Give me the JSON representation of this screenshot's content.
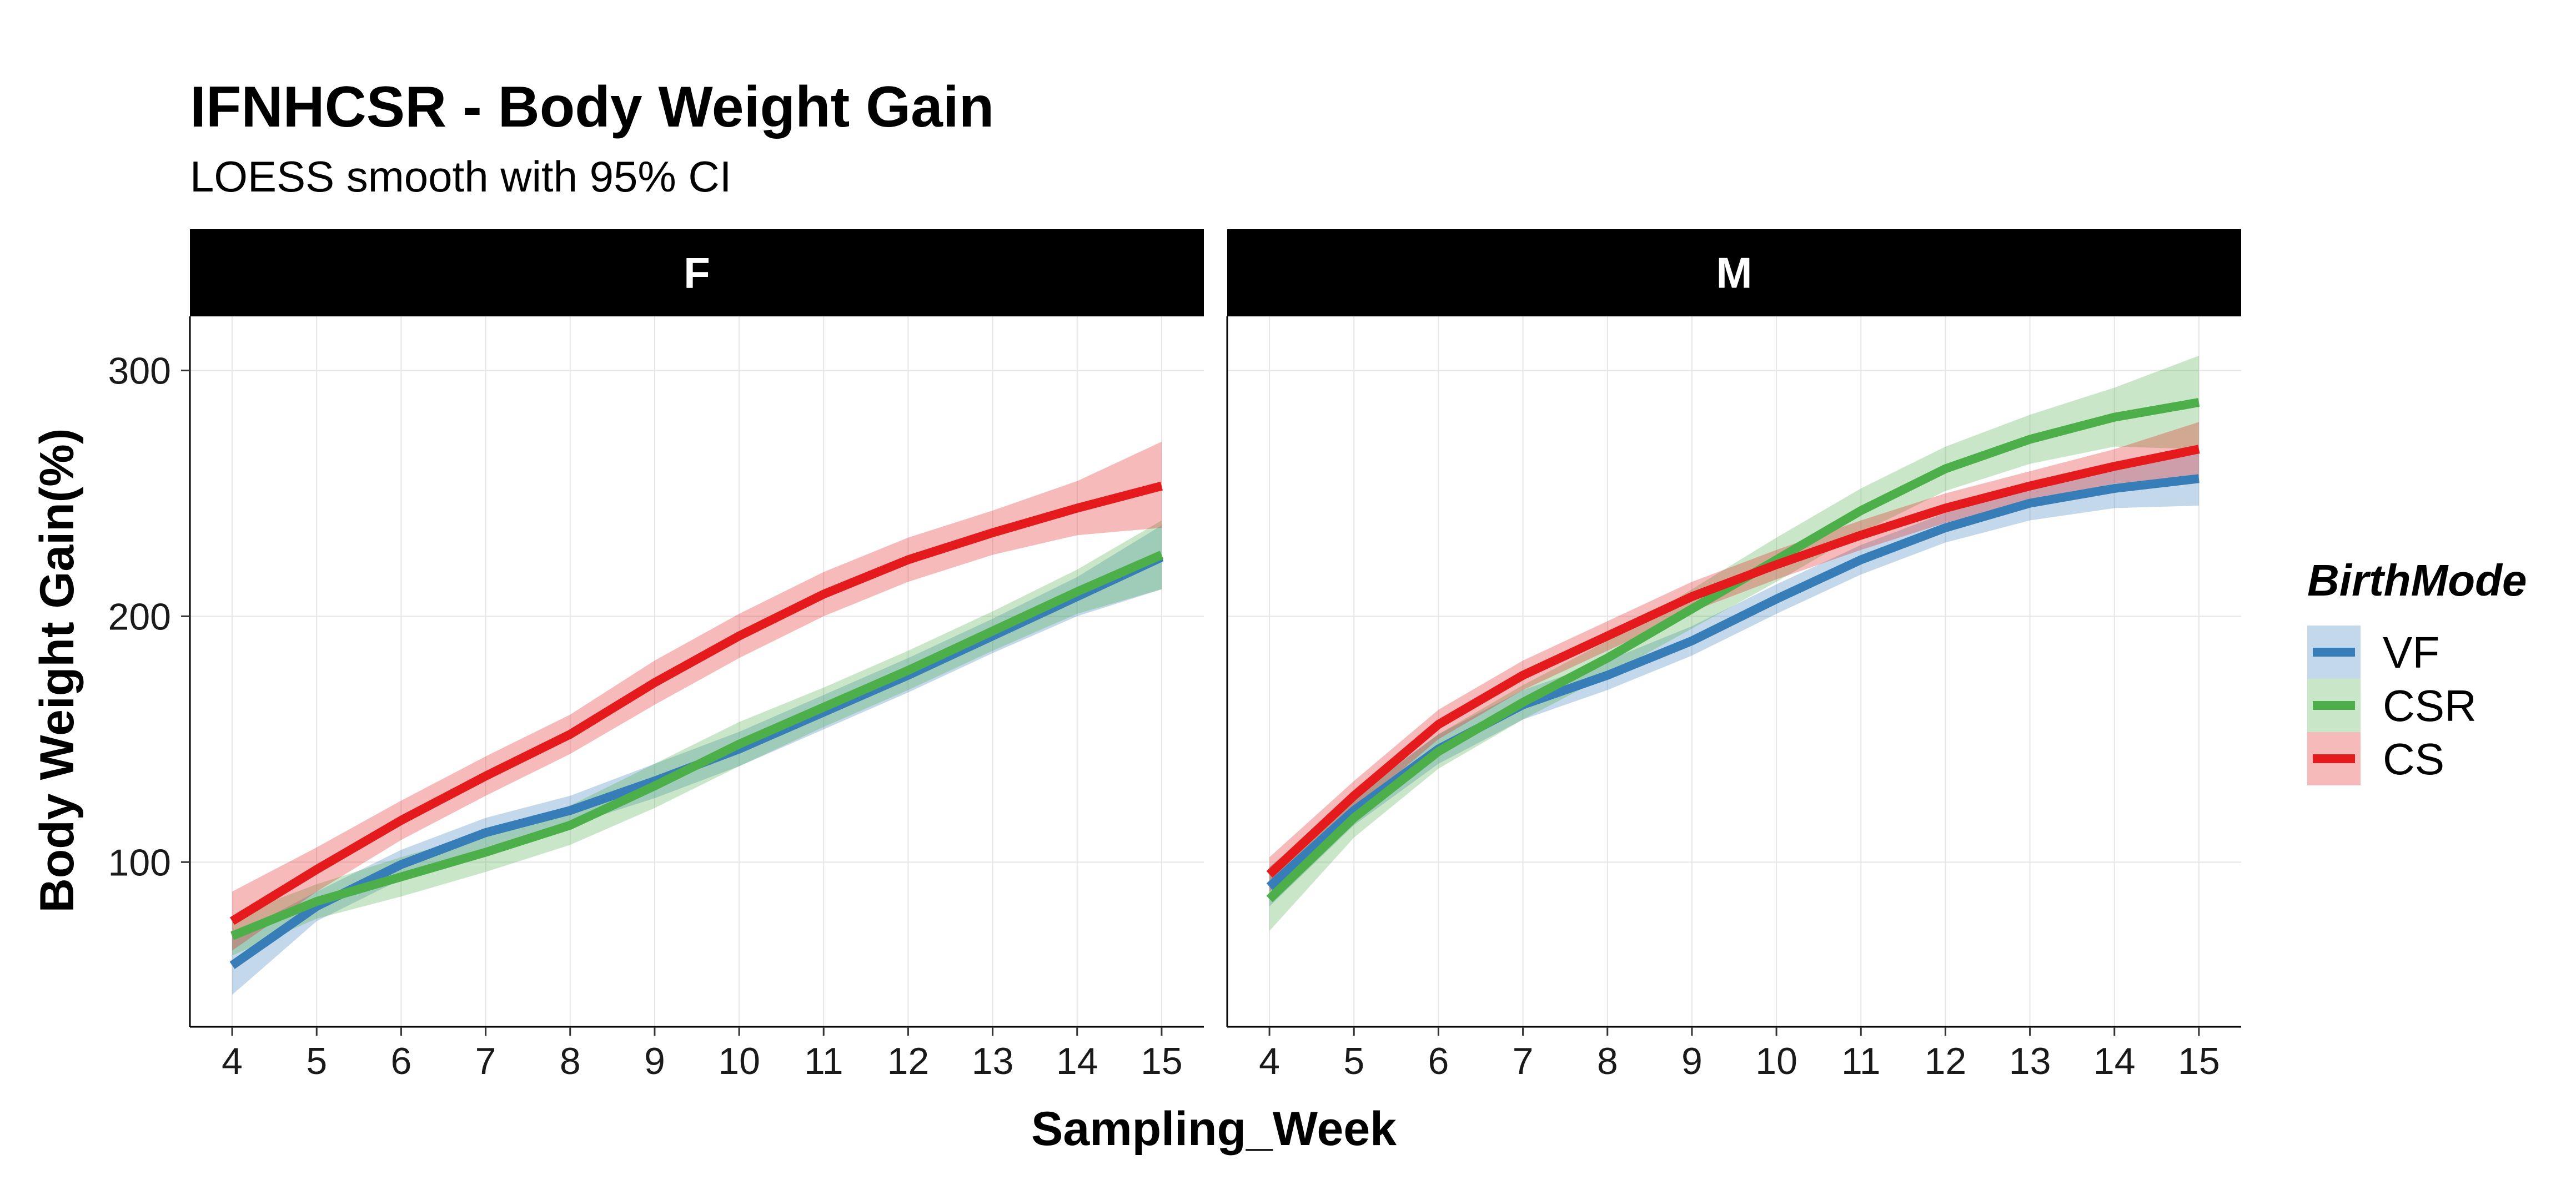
{
  "chart_data": {
    "type": "line",
    "title": "IFNHCSR - Body Weight Gain",
    "subtitle": "LOESS smooth with 95% CI",
    "xlabel": "Sampling_Week",
    "ylabel": "Body Weight Gain(%)",
    "x": [
      4,
      5,
      6,
      7,
      8,
      9,
      10,
      11,
      12,
      13,
      14,
      15
    ],
    "x_ticks": [
      "4",
      "5",
      "6",
      "7",
      "8",
      "9",
      "10",
      "11",
      "12",
      "13",
      "14",
      "15"
    ],
    "y_ticks": [
      "100",
      "200",
      "300"
    ],
    "xlim": [
      3.5,
      15.5
    ],
    "ylim": [
      33,
      322
    ],
    "grid": true,
    "legend": {
      "title": "BirthMode",
      "position": "right",
      "entries": [
        "VF",
        "CSR",
        "CS"
      ]
    },
    "colors": {
      "VF": "#377eb8",
      "CSR": "#4daf4a",
      "CS": "#e41a1c",
      "strip": "#000000"
    },
    "panels": [
      {
        "label": "F",
        "series": [
          {
            "name": "VF",
            "values": [
              58,
              82,
              99,
              112,
              121,
              133,
              146,
              161,
              176,
              192,
              208,
              224
            ],
            "lower": [
              46,
              76,
              93,
              106,
              115,
              126,
              139,
              154,
              169,
              185,
              200,
              211
            ],
            "upper": [
              70,
              88,
              105,
              118,
              127,
              140,
              153,
              168,
              183,
              199,
              216,
              237
            ]
          },
          {
            "name": "CSR",
            "values": [
              70,
              84,
              94,
              104,
              115,
              131,
              148,
              163,
              178,
              194,
              210,
              225
            ],
            "lower": [
              62,
              77,
              86,
              96,
              107,
              122,
              139,
              155,
              170,
              186,
              201,
              211
            ],
            "upper": [
              78,
              91,
              102,
              112,
              123,
              140,
              157,
              171,
              186,
              202,
              219,
              239
            ]
          },
          {
            "name": "CS",
            "values": [
              76,
              97,
              117,
              135,
              152,
              173,
              192,
              209,
              223,
              234,
              244,
              253
            ],
            "lower": [
              64,
              88,
              109,
              127,
              144,
              164,
              183,
              200,
              214,
              225,
              233,
              236
            ],
            "upper": [
              88,
              106,
              125,
              143,
              160,
              182,
              201,
              218,
              232,
              243,
              255,
              271
            ]
          }
        ]
      },
      {
        "label": "M",
        "series": [
          {
            "name": "VF",
            "values": [
              90,
              121,
              146,
              164,
              176,
              190,
              207,
              223,
              236,
              246,
              252,
              256
            ],
            "lower": [
              82,
              115,
              140,
              158,
              170,
              184,
              201,
              217,
              230,
              239,
              244,
              245
            ],
            "upper": [
              98,
              127,
              152,
              170,
              182,
              196,
              213,
              229,
              242,
              253,
              260,
              267
            ]
          },
          {
            "name": "CSR",
            "values": [
              85,
              118,
              145,
              165,
              183,
              203,
              223,
              243,
              260,
              272,
              281,
              287
            ],
            "lower": [
              72,
              110,
              138,
              158,
              176,
              195,
              214,
              234,
              251,
              262,
              269,
              268
            ],
            "upper": [
              98,
              126,
              152,
              172,
              190,
              211,
              232,
              252,
              269,
              282,
              293,
              306
            ]
          },
          {
            "name": "CS",
            "values": [
              95,
              127,
              156,
              176,
              192,
              208,
              221,
              233,
              244,
              253,
              261,
              268
            ],
            "lower": [
              88,
              121,
              150,
              170,
              186,
              202,
              215,
              227,
              238,
              247,
              254,
              257
            ],
            "upper": [
              102,
              133,
              162,
              182,
              198,
              214,
              227,
              239,
              250,
              259,
              268,
              279
            ]
          }
        ]
      }
    ]
  }
}
